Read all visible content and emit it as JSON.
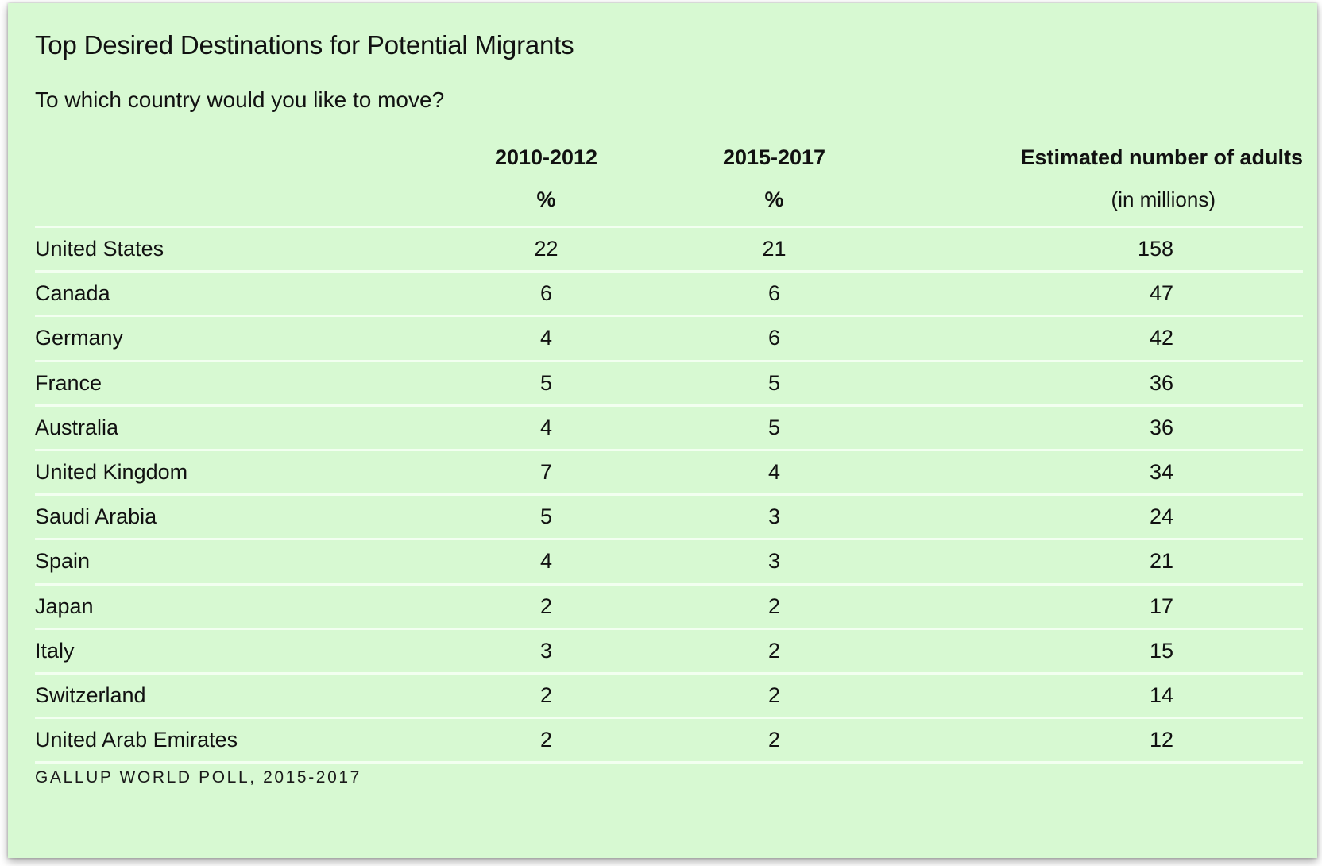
{
  "chart_data": {
    "type": "table",
    "title": "Top Desired Destinations for Potential Migrants",
    "subtitle": "To which country would you like to move?",
    "columns": [
      {
        "label": "",
        "unit": ""
      },
      {
        "label": "2010-2012",
        "unit": "%"
      },
      {
        "label": "2015-2017",
        "unit": "%"
      },
      {
        "label": "Estimated number of adults",
        "unit": "(in millions)"
      }
    ],
    "rows": [
      {
        "country": "United States",
        "pct_2010_2012": "22",
        "pct_2015_2017": "21",
        "adults_millions": "158"
      },
      {
        "country": "Canada",
        "pct_2010_2012": "6",
        "pct_2015_2017": "6",
        "adults_millions": "47"
      },
      {
        "country": "Germany",
        "pct_2010_2012": "4",
        "pct_2015_2017": "6",
        "adults_millions": "42"
      },
      {
        "country": "France",
        "pct_2010_2012": "5",
        "pct_2015_2017": "5",
        "adults_millions": "36"
      },
      {
        "country": "Australia",
        "pct_2010_2012": "4",
        "pct_2015_2017": "5",
        "adults_millions": "36"
      },
      {
        "country": "United Kingdom",
        "pct_2010_2012": "7",
        "pct_2015_2017": "4",
        "adults_millions": "34"
      },
      {
        "country": "Saudi Arabia",
        "pct_2010_2012": "5",
        "pct_2015_2017": "3",
        "adults_millions": "24"
      },
      {
        "country": "Spain",
        "pct_2010_2012": "4",
        "pct_2015_2017": "3",
        "adults_millions": "21"
      },
      {
        "country": "Japan",
        "pct_2010_2012": "2",
        "pct_2015_2017": "2",
        "adults_millions": "17"
      },
      {
        "country": "Italy",
        "pct_2010_2012": "3",
        "pct_2015_2017": "2",
        "adults_millions": "15"
      },
      {
        "country": "Switzerland",
        "pct_2010_2012": "2",
        "pct_2015_2017": "2",
        "adults_millions": "14"
      },
      {
        "country": "United Arab Emirates",
        "pct_2010_2012": "2",
        "pct_2015_2017": "2",
        "adults_millions": "12"
      }
    ],
    "source": "GALLUP WORLD POLL, 2015-2017"
  },
  "colors": {
    "background": "#d7f9d2",
    "divider": "#f2fff0",
    "text": "#111111"
  }
}
